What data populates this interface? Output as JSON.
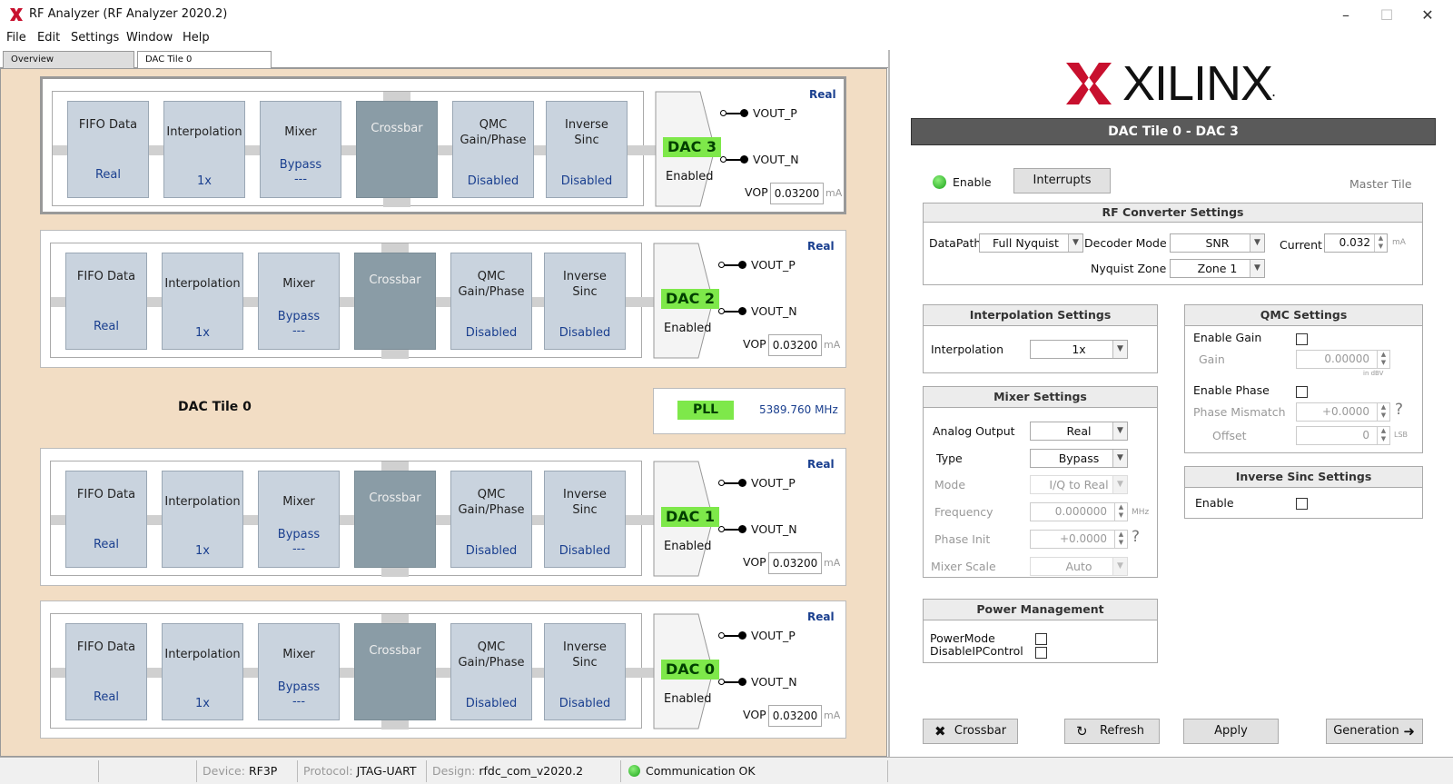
{
  "window": {
    "title": "RF Analyzer (RF Analyzer 2020.2)",
    "minimize": "–",
    "maximize": "☐",
    "close": "✕"
  },
  "menu": [
    "File",
    "Edit",
    "Settings",
    "Window",
    "Help"
  ],
  "tabs": [
    "Overview",
    "DAC Tile 0"
  ],
  "tile": {
    "label": "DAC Tile 0",
    "pll": {
      "label": "PLL",
      "freq": "5389.760 MHz"
    },
    "dacs": [
      {
        "badge": "DAC 3",
        "real": "Real",
        "fifo": "FIFO Data",
        "fifo_val": "Real",
        "interp": "Interpolation",
        "interp_val": "1x",
        "mixer": "Mixer",
        "mixer_val": "Bypass",
        "mixer_val2": "---",
        "crossbar": "Crossbar",
        "qmc1": "QMC",
        "qmc2": "Gain/Phase",
        "qmc_val": "Disabled",
        "isinc1": "Inverse",
        "isinc2": "Sinc",
        "isinc_val": "Disabled",
        "state": "Enabled",
        "voutp": "VOUT_P",
        "voutn": "VOUT_N",
        "vop_label": "VOP",
        "vop": "0.03200",
        "unit": "mA"
      },
      {
        "badge": "DAC 2",
        "real": "Real",
        "fifo": "FIFO Data",
        "fifo_val": "Real",
        "interp": "Interpolation",
        "interp_val": "1x",
        "mixer": "Mixer",
        "mixer_val": "Bypass",
        "mixer_val2": "---",
        "crossbar": "Crossbar",
        "qmc1": "QMC",
        "qmc2": "Gain/Phase",
        "qmc_val": "Disabled",
        "isinc1": "Inverse",
        "isinc2": "Sinc",
        "isinc_val": "Disabled",
        "state": "Enabled",
        "voutp": "VOUT_P",
        "voutn": "VOUT_N",
        "vop_label": "VOP",
        "vop": "0.03200",
        "unit": "mA"
      },
      {
        "badge": "DAC 1",
        "real": "Real",
        "fifo": "FIFO Data",
        "fifo_val": "Real",
        "interp": "Interpolation",
        "interp_val": "1x",
        "mixer": "Mixer",
        "mixer_val": "Bypass",
        "mixer_val2": "---",
        "crossbar": "Crossbar",
        "qmc1": "QMC",
        "qmc2": "Gain/Phase",
        "qmc_val": "Disabled",
        "isinc1": "Inverse",
        "isinc2": "Sinc",
        "isinc_val": "Disabled",
        "state": "Enabled",
        "voutp": "VOUT_P",
        "voutn": "VOUT_N",
        "vop_label": "VOP",
        "vop": "0.03200",
        "unit": "mA"
      },
      {
        "badge": "DAC 0",
        "real": "Real",
        "fifo": "FIFO Data",
        "fifo_val": "Real",
        "interp": "Interpolation",
        "interp_val": "1x",
        "mixer": "Mixer",
        "mixer_val": "Bypass",
        "mixer_val2": "---",
        "crossbar": "Crossbar",
        "qmc1": "QMC",
        "qmc2": "Gain/Phase",
        "qmc_val": "Disabled",
        "isinc1": "Inverse",
        "isinc2": "Sinc",
        "isinc_val": "Disabled",
        "state": "Enabled",
        "voutp": "VOUT_P",
        "voutn": "VOUT_N",
        "vop_label": "VOP",
        "vop": "0.03200",
        "unit": "mA"
      }
    ]
  },
  "right": {
    "logo_text": "XILINX",
    "logo_dot": ".",
    "header": "DAC Tile 0 - DAC 3",
    "enable_label": "Enable",
    "interrupts": "Interrupts",
    "master_tile": "Master Tile",
    "rf": {
      "title": "RF Converter Settings",
      "datapath_label": "DataPath",
      "datapath": "Full Nyquist",
      "decoder_label": "Decoder Mode",
      "decoder": "SNR",
      "current_label": "Current",
      "current": "0.032",
      "current_unit": "mA",
      "nyquist_label": "Nyquist Zone",
      "nyquist": "Zone 1"
    },
    "interp": {
      "title": "Interpolation Settings",
      "label": "Interpolation",
      "value": "1x"
    },
    "mixer": {
      "title": "Mixer Settings",
      "analog_label": "Analog Output",
      "analog": "Real",
      "type_label": "Type",
      "type": "Bypass",
      "mode_label": "Mode",
      "mode": "I/Q to Real",
      "freq_label": "Frequency",
      "freq": "0.000000",
      "freq_unit": "MHz",
      "phase_label": "Phase Init",
      "phase": "+0.0000",
      "phase_help": "?",
      "scale_label": "Mixer Scale",
      "scale": "Auto"
    },
    "power": {
      "title": "Power Management",
      "label1": "PowerMode",
      "label2": "DisableIPControl"
    },
    "qmc": {
      "title": "QMC Settings",
      "gain_en": "Enable Gain",
      "gain_label": "Gain",
      "gain": "0.00000",
      "gain_unit": "in dBV",
      "phase_en": "Enable Phase",
      "phase_label": "Phase Mismatch",
      "phase": "+0.0000",
      "phase_help": "?",
      "offset_label": "Offset",
      "offset": "0",
      "offset_unit": "LSB"
    },
    "isinc": {
      "title": "Inverse Sinc Settings",
      "enable": "Enable"
    },
    "buttons": {
      "crossbar": "Crossbar",
      "refresh": "Refresh",
      "apply": "Apply",
      "generation": "Generation"
    }
  },
  "status": {
    "device_label": "Device:",
    "device": "RF3P",
    "protocol_label": "Protocol:",
    "protocol": "JTAG-UART",
    "design_label": "Design:",
    "design": "rfdc_com_v2020.2",
    "comm": "Communication OK"
  }
}
